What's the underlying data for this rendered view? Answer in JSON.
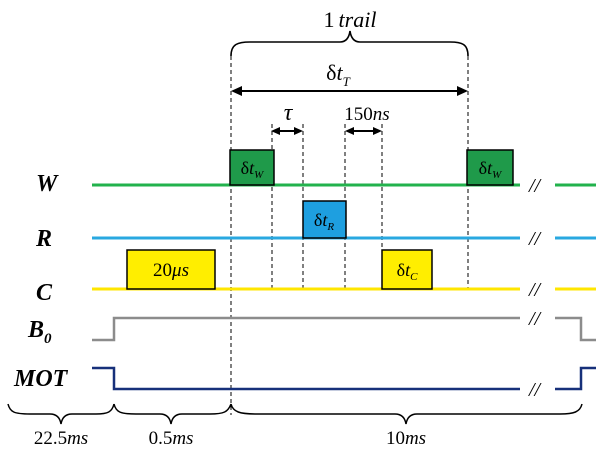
{
  "labels": {
    "trail": {
      "num": "1",
      "word": "trail"
    },
    "delta_t_T": {
      "delta": "δ",
      "t": "t",
      "sub": "T"
    },
    "tau": "τ",
    "gap_150": {
      "num": "150",
      "unit": "ns"
    },
    "rows": {
      "W": {
        "main": "W",
        "sub": ""
      },
      "R": {
        "main": "R",
        "sub": ""
      },
      "C": {
        "main": "C",
        "sub": ""
      },
      "B0": {
        "main": "B",
        "sub": "0"
      },
      "MOT": {
        "main": "MOT",
        "sub": ""
      }
    },
    "pulses": {
      "W1": {
        "delta": "δ",
        "t": "t",
        "sub": "W"
      },
      "W2": {
        "delta": "δ",
        "t": "t",
        "sub": "W"
      },
      "R": {
        "delta": "δ",
        "t": "t",
        "sub": "R"
      },
      "C": {
        "delta": "δ",
        "t": "t",
        "sub": "C"
      },
      "C20": {
        "num": "20",
        "unit": "μs"
      }
    },
    "break_mark": "//",
    "durations": [
      {
        "num": "22.5",
        "unit": "ms"
      },
      {
        "num": "0.5",
        "unit": "ms"
      },
      {
        "num": "10",
        "unit": "ms"
      }
    ]
  },
  "colors": {
    "W": "#22b24c",
    "W_pulse": "#1f9a4a",
    "R": "#29a8e0",
    "R_pulse": "#1e9fe0",
    "C": "#ffe600",
    "B0": "#8c8c8c",
    "MOT": "#17307a"
  }
}
